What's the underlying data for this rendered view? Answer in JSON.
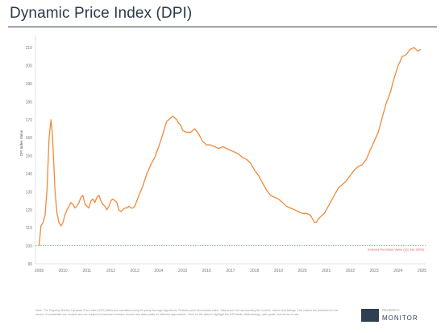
{
  "page": {
    "title": "Dynamic Price Index (DPI)",
    "footnote": "Note: The Property Monitor Dynamic Price Index (DPI) fields are calculated using Property Average algorithms. Reflects price benchmark value. Values are not representing the current, values and listings. The indices are published in the source of residential use models and are subject to backward revision should new data justify no different approaches. Click on the data to highlight the DPI fields. Methodology, user guide, and terms of use.",
    "logo_small": "PROPERTY",
    "logo_text": "MONITOR"
  },
  "colors": {
    "line": "#f08a3a",
    "reference": "#e8505b",
    "axis_text": "#777777",
    "grid": "#eeeeee"
  },
  "chart_data": {
    "type": "line",
    "title": "Dynamic Price Index (DPI)",
    "ylabel": "DPI Index Value",
    "xlabel": "",
    "ylim": [
      90,
      215
    ],
    "xlim": [
      2008.85,
      2025.15
    ],
    "y_ticks": [
      90,
      100,
      110,
      120,
      130,
      140,
      150,
      160,
      170,
      180,
      190,
      200,
      210
    ],
    "x_ticks": [
      "2009",
      "2010",
      "2011",
      "2012",
      "2013",
      "2014",
      "2015",
      "2016",
      "2017",
      "2018",
      "2019",
      "2020",
      "2021",
      "2022",
      "2023",
      "2024",
      "2025"
    ],
    "grid": false,
    "reference_line": {
      "value": 100,
      "label": "Indexed Purchase Value (Q1 Jan 2009)"
    },
    "series": [
      {
        "x": [
          2009.0,
          2009.08,
          2009.17,
          2009.25,
          2009.33,
          2009.42,
          2009.5,
          2009.55,
          2009.6,
          2009.67,
          2009.75,
          2009.83,
          2009.92,
          2010.0,
          2010.08,
          2010.17,
          2010.25,
          2010.33,
          2010.42,
          2010.5,
          2010.58,
          2010.67,
          2010.75,
          2010.83,
          2010.92,
          2011.0,
          2011.08,
          2011.17,
          2011.25,
          2011.33,
          2011.42,
          2011.5,
          2011.58,
          2011.67,
          2011.75,
          2011.83,
          2011.92,
          2012.0,
          2012.08,
          2012.17,
          2012.25,
          2012.33,
          2012.42,
          2012.5,
          2012.58,
          2012.67,
          2012.75,
          2012.83,
          2012.92,
          2013.0,
          2013.17,
          2013.33,
          2013.5,
          2013.67,
          2013.83,
          2014.0,
          2014.17,
          2014.33,
          2014.5,
          2014.58,
          2014.67,
          2014.75,
          2014.83,
          2014.92,
          2015.0,
          2015.17,
          2015.33,
          2015.5,
          2015.67,
          2015.83,
          2016.0,
          2016.17,
          2016.33,
          2016.5,
          2016.67,
          2016.83,
          2017.0,
          2017.17,
          2017.33,
          2017.5,
          2017.67,
          2017.83,
          2018.0,
          2018.17,
          2018.33,
          2018.5,
          2018.67,
          2018.83,
          2019.0,
          2019.17,
          2019.33,
          2019.5,
          2019.67,
          2019.83,
          2020.0,
          2020.17,
          2020.33,
          2020.42,
          2020.5,
          2020.58,
          2020.67,
          2020.75,
          2020.83,
          2020.92,
          2021.0,
          2021.17,
          2021.33,
          2021.5,
          2021.67,
          2021.83,
          2022.0,
          2022.17,
          2022.33,
          2022.5,
          2022.67,
          2022.83,
          2023.0,
          2023.17,
          2023.33,
          2023.5,
          2023.67,
          2023.83,
          2024.0,
          2024.17,
          2024.33,
          2024.5,
          2024.67,
          2024.83,
          2024.92
        ],
        "values": [
          100,
          111,
          113,
          117,
          131,
          160,
          170,
          163,
          150,
          130,
          118,
          113,
          111,
          113,
          117,
          120,
          122,
          124,
          123,
          121,
          122,
          124,
          127,
          128,
          123,
          122,
          121,
          125,
          126,
          124,
          127,
          128,
          125,
          123,
          122,
          120,
          122,
          125,
          126,
          125,
          124,
          120,
          119,
          120,
          121,
          121,
          122,
          121,
          121,
          122,
          128,
          133,
          140,
          145,
          149,
          155,
          162,
          169,
          171,
          172,
          171,
          170,
          168,
          167,
          164,
          163,
          163,
          165,
          162,
          158,
          156,
          156,
          155,
          154,
          155,
          154,
          153,
          152,
          151,
          149,
          148,
          146,
          142,
          139,
          135,
          131,
          128,
          127,
          126,
          124,
          122,
          121,
          120,
          119,
          118,
          118,
          117,
          115,
          113,
          113,
          115,
          116,
          117,
          118,
          120,
          124,
          128,
          132,
          134,
          136,
          139,
          142,
          144,
          145,
          148,
          153,
          158,
          163,
          171,
          179,
          185,
          193,
          200,
          205,
          206,
          209,
          210,
          208,
          209
        ]
      }
    ]
  }
}
